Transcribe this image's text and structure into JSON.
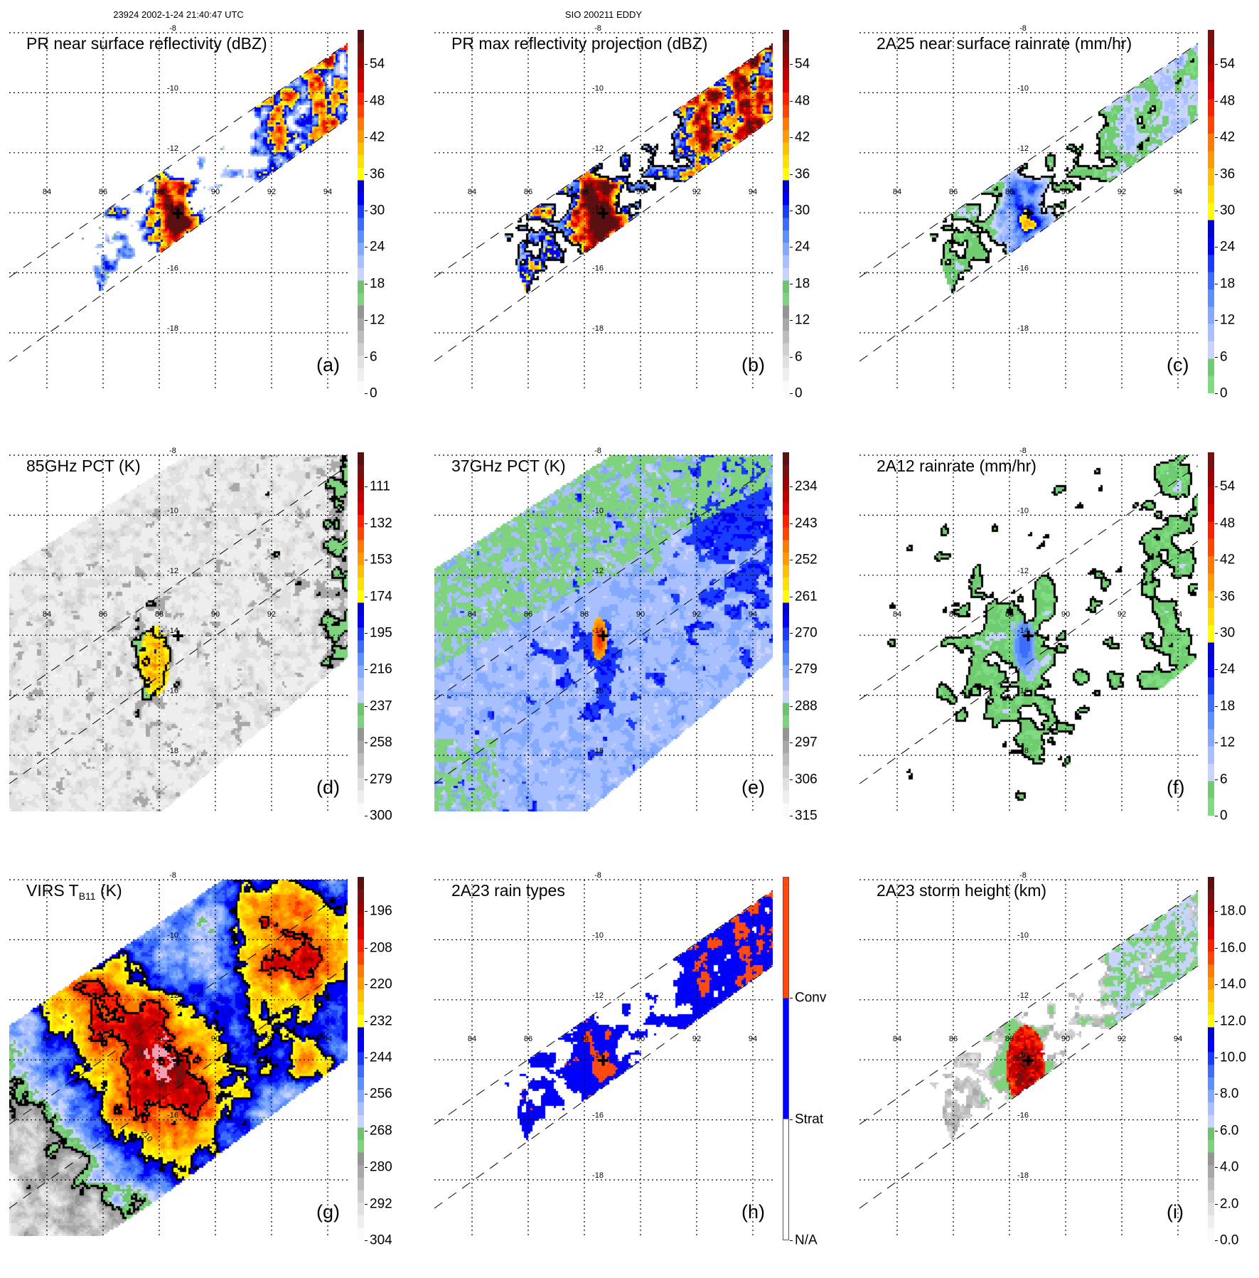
{
  "header": {
    "orbit_time": "23924 2002-1-24 21:40:47 UTC",
    "storm": "SIO 200211 EDDY"
  },
  "axes": {
    "lon_labels": [
      "84",
      "86",
      "88",
      "90",
      "92",
      "94"
    ],
    "lat_labels": [
      "-8",
      "-10",
      "-12",
      "-14",
      "-16",
      "-18"
    ]
  },
  "palettes": {
    "dbz": [
      "#fafafa",
      "#eeeeee",
      "#e0e0e0",
      "#cfcfcf",
      "#bcbcbc",
      "#a8a8a8",
      "#959595",
      "#7fd37f",
      "#6cc46c",
      "#c9d3ff",
      "#a8c0ff",
      "#84aaff",
      "#5d90ff",
      "#3d6dff",
      "#1a3cff",
      "#0000ff",
      "#0000d8",
      "#ffff00",
      "#ffe000",
      "#ffc000",
      "#ff9a00",
      "#ff7a00",
      "#ff4500",
      "#ff2000",
      "#e00000",
      "#c00000",
      "#a00000",
      "#781010",
      "#5a1010"
    ],
    "rain": [
      "#80dc80",
      "#70cc70",
      "#c9d3ff",
      "#a8c0ff",
      "#84aaff",
      "#5d90ff",
      "#3d6dff",
      "#1a3cff",
      "#0000ff",
      "#0000d8",
      "#ffff00",
      "#ffe000",
      "#ffc000",
      "#ff9a00",
      "#ff7a00",
      "#ff4500",
      "#ff2000",
      "#e00000",
      "#c00000",
      "#a00000",
      "#781010"
    ],
    "types": [
      "#ffffff",
      "#0000ff",
      "#ff4a10"
    ]
  },
  "panels": [
    {
      "id": "a",
      "title": "PR near surface reflectivity (dBZ)",
      "letter": "(a)",
      "palette": "dbz",
      "cb_labels": [
        "0",
        "6",
        "12",
        "18",
        "24",
        "30",
        "36",
        "42",
        "48",
        "54"
      ]
    },
    {
      "id": "b",
      "title": "PR max reflectivity projection (dBZ)",
      "letter": "(b)",
      "palette": "dbz",
      "cb_labels": [
        "0",
        "6",
        "12",
        "18",
        "24",
        "30",
        "36",
        "42",
        "48",
        "54"
      ]
    },
    {
      "id": "c",
      "title": "2A25 near surface rainrate (mm/hr)",
      "letter": "(c)",
      "palette": "rain",
      "cb_labels": [
        "0",
        "6",
        "12",
        "18",
        "24",
        "30",
        "36",
        "42",
        "48",
        "54"
      ]
    },
    {
      "id": "d",
      "title": "85GHz PCT (K)",
      "letter": "(d)",
      "palette": "dbz",
      "cb_labels": [
        "300",
        "279",
        "258",
        "237",
        "216",
        "195",
        "174",
        "153",
        "132",
        "111"
      ]
    },
    {
      "id": "e",
      "title": "37GHz PCT (K)",
      "letter": "(e)",
      "palette": "dbz",
      "cb_labels": [
        "315",
        "306",
        "297",
        "288",
        "279",
        "270",
        "261",
        "252",
        "243",
        "234"
      ]
    },
    {
      "id": "f",
      "title": "2A12 rainrate (mm/hr)",
      "letter": "(f)",
      "palette": "rain",
      "cb_labels": [
        "0",
        "6",
        "12",
        "18",
        "24",
        "30",
        "36",
        "42",
        "48",
        "54"
      ]
    },
    {
      "id": "g",
      "title": "VIRS T",
      "title_sub": "B11",
      "title_tail": " (K)",
      "letter": "(g)",
      "palette": "dbz",
      "cb_labels": [
        "304",
        "292",
        "280",
        "268",
        "256",
        "244",
        "232",
        "220",
        "208",
        "196"
      ],
      "contour_label": "210"
    },
    {
      "id": "h",
      "title": "2A23 rain types",
      "letter": "(h)",
      "palette": "types",
      "cb_labels": [
        "N/A",
        "Strat",
        "Conv"
      ]
    },
    {
      "id": "i",
      "title": "2A23 storm height (km)",
      "letter": "(i)",
      "palette": "dbz",
      "cb_labels": [
        "0.0",
        "2.0",
        "4.0",
        "6.0",
        "8.0",
        "10.0",
        "12.0",
        "14.0",
        "16.0",
        "18.0"
      ]
    }
  ]
}
